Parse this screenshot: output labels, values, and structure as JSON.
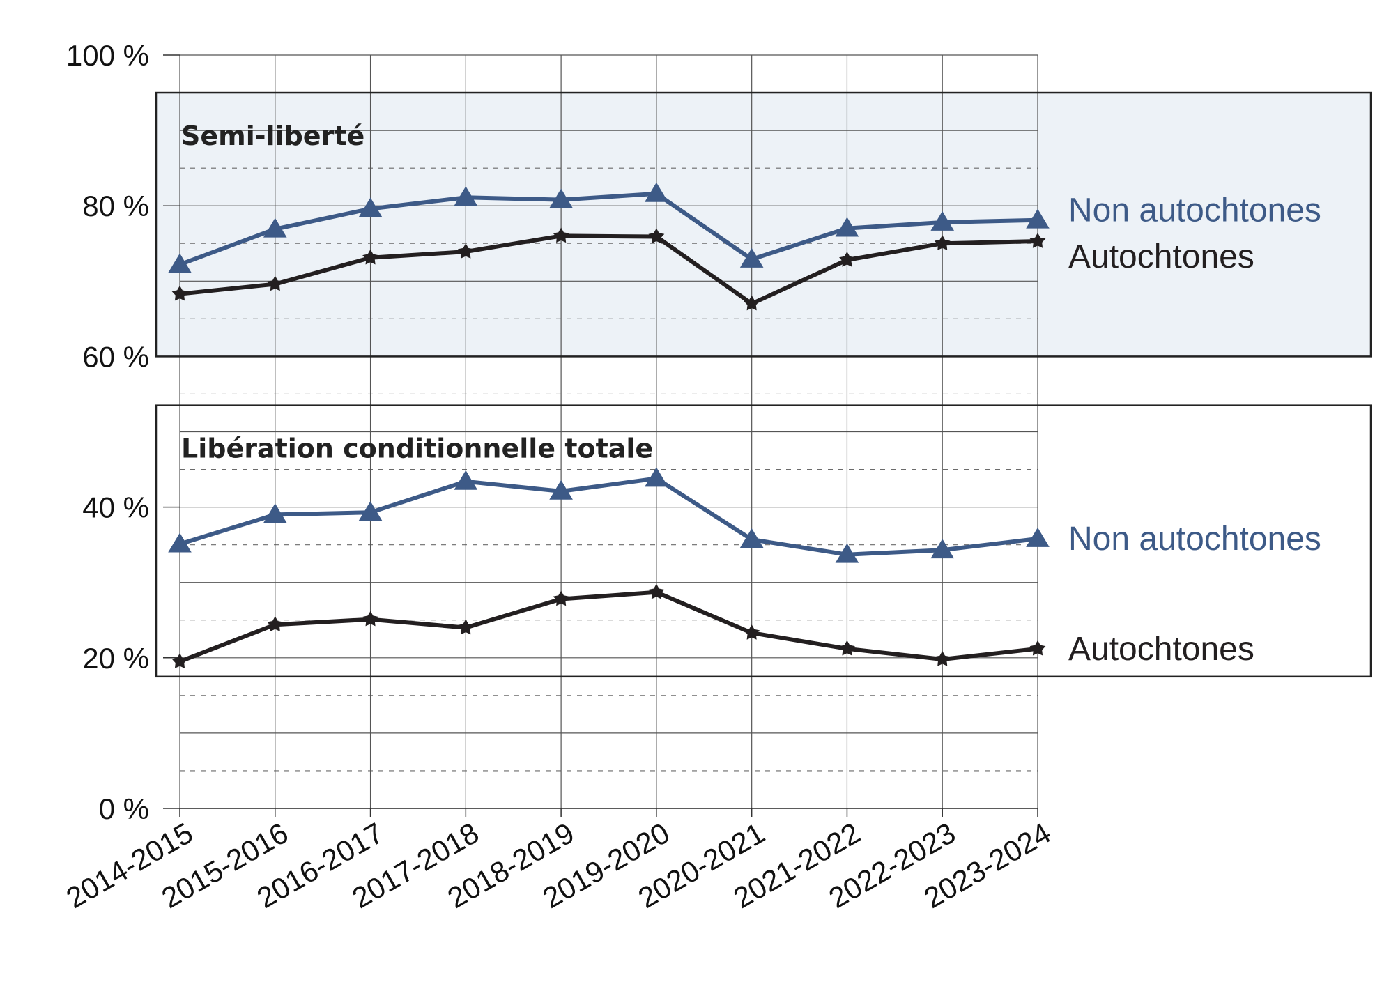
{
  "chart_data": {
    "type": "line",
    "categories": [
      "2014-2015",
      "2015-2016",
      "2016-2017",
      "2017-2018",
      "2018-2019",
      "2019-2020",
      "2020-2021",
      "2021-2022",
      "2022-2023",
      "2023-2024"
    ],
    "ylim": [
      0,
      100
    ],
    "yticks": [
      {
        "value": 0,
        "label": "0 %"
      },
      {
        "value": 20,
        "label": "20 %"
      },
      {
        "value": 40,
        "label": "40 %"
      },
      {
        "value": 60,
        "label": "60 %"
      },
      {
        "value": 80,
        "label": "80 %"
      },
      {
        "value": 100,
        "label": "100 %"
      }
    ],
    "grid": true,
    "colors": {
      "non_indigenous": "#3d5a87",
      "indigenous": "#231f20",
      "panel_fill": "#edf2f7",
      "panel_border": "#222222"
    },
    "panels": [
      {
        "title": "Semi-liberté",
        "range": [
          60,
          95
        ],
        "shaded": true,
        "series": [
          {
            "name": "Non autochtones",
            "key": "non_indigenous",
            "marker": "triangle",
            "values": [
              72.2,
              76.9,
              79.6,
              81.1,
              80.8,
              81.6,
              72.9,
              77.0,
              77.8,
              78.1
            ]
          },
          {
            "name": "Autochtones",
            "key": "indigenous",
            "marker": "star",
            "values": [
              68.3,
              69.6,
              73.1,
              73.9,
              76.0,
              75.9,
              67.0,
              72.8,
              75.0,
              75.3
            ]
          }
        ]
      },
      {
        "title": "Libération conditionnelle totale",
        "range": [
          17.5,
          53.5
        ],
        "shaded": false,
        "series": [
          {
            "name": "Non autochtones",
            "key": "non_indigenous",
            "marker": "triangle",
            "values": [
              35.1,
              39.0,
              39.3,
              43.4,
              42.1,
              43.8,
              35.7,
              33.7,
              34.3,
              35.8
            ]
          },
          {
            "name": "Autochtones",
            "key": "indigenous",
            "marker": "star",
            "values": [
              19.5,
              24.4,
              25.1,
              24.0,
              27.8,
              28.7,
              23.3,
              21.2,
              19.8,
              21.2
            ]
          }
        ]
      }
    ]
  }
}
